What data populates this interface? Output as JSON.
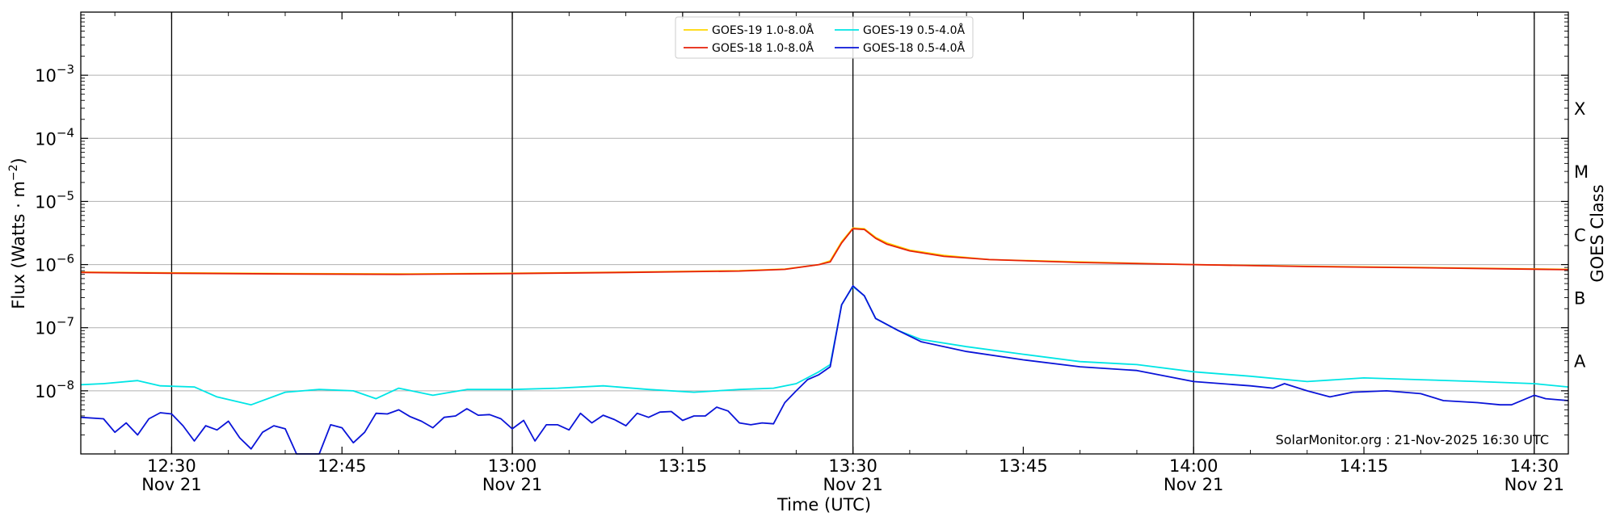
{
  "chart_data": {
    "type": "line",
    "xlabel": "Time (UTC)",
    "ylabel_main": "Flux (Watts · m",
    "ylabel_sup": "−2",
    "ylabel_close": ")",
    "ylabel_right": "GOES Class",
    "y_scale": "log",
    "ylim": [
      1e-09,
      0.01
    ],
    "xlim": [
      "12:22",
      "14:33"
    ],
    "y_ticks": [
      {
        "value": 0.001,
        "base": "10",
        "exp": "−3"
      },
      {
        "value": 0.0001,
        "base": "10",
        "exp": "−4"
      },
      {
        "value": 1e-05,
        "base": "10",
        "exp": "−5"
      },
      {
        "value": 1e-06,
        "base": "10",
        "exp": "−6"
      },
      {
        "value": 1e-07,
        "base": "10",
        "exp": "−7"
      },
      {
        "value": 1e-08,
        "base": "10",
        "exp": "−8"
      }
    ],
    "x_ticks": [
      {
        "time": "12:30",
        "label": "12:30",
        "date": "Nov 21",
        "vline": true
      },
      {
        "time": "12:45",
        "label": "12:45",
        "date": "",
        "vline": false
      },
      {
        "time": "13:00",
        "label": "13:00",
        "date": "Nov 21",
        "vline": true
      },
      {
        "time": "13:15",
        "label": "13:15",
        "date": "",
        "vline": false
      },
      {
        "time": "13:30",
        "label": "13:30",
        "date": "Nov 21",
        "vline": true
      },
      {
        "time": "13:45",
        "label": "13:45",
        "date": "",
        "vline": false
      },
      {
        "time": "14:00",
        "label": "14:00",
        "date": "Nov 21",
        "vline": true
      },
      {
        "time": "14:15",
        "label": "14:15",
        "date": "",
        "vline": false
      },
      {
        "time": "14:30",
        "label": "14:30",
        "date": "Nov 21",
        "vline": true
      }
    ],
    "goes_classes": [
      {
        "label": "X",
        "flux": 0.0003
      },
      {
        "label": "M",
        "flux": 3e-05
      },
      {
        "label": "C",
        "flux": 3e-06
      },
      {
        "label": "B",
        "flux": 3e-07
      },
      {
        "label": "A",
        "flux": 3e-08
      }
    ],
    "grid": "horizontal",
    "legend_position": "top-center",
    "credit": "SolarMonitor.org : 21-Nov-2025 16:30 UTC",
    "series": [
      {
        "name": "GOES-19 1.0-8.0Å",
        "color": "#ffd700",
        "points": [
          [
            "12:22",
            7.6e-07
          ],
          [
            "12:30",
            7.4e-07
          ],
          [
            "12:40",
            7.2e-07
          ],
          [
            "12:50",
            7.1e-07
          ],
          [
            "13:00",
            7.3e-07
          ],
          [
            "13:10",
            7.6e-07
          ],
          [
            "13:20",
            8e-07
          ],
          [
            "13:24",
            8.5e-07
          ],
          [
            "13:27",
            1e-06
          ],
          [
            "13:28",
            1.15e-06
          ],
          [
            "13:29",
            2.3e-06
          ],
          [
            "13:30",
            3.8e-06
          ],
          [
            "13:31",
            3.7e-06
          ],
          [
            "13:32",
            2.7e-06
          ],
          [
            "13:33",
            2.2e-06
          ],
          [
            "13:35",
            1.7e-06
          ],
          [
            "13:38",
            1.4e-06
          ],
          [
            "13:42",
            1.2e-06
          ],
          [
            "13:50",
            1.1e-06
          ],
          [
            "14:00",
            1e-06
          ],
          [
            "14:10",
            9.4e-07
          ],
          [
            "14:20",
            9e-07
          ],
          [
            "14:33",
            8.4e-07
          ]
        ]
      },
      {
        "name": "GOES-18 1.0-8.0Å",
        "color": "#e6200a",
        "points": [
          [
            "12:22",
            7.5e-07
          ],
          [
            "12:30",
            7.3e-07
          ],
          [
            "12:40",
            7.1e-07
          ],
          [
            "12:50",
            7e-07
          ],
          [
            "13:00",
            7.2e-07
          ],
          [
            "13:10",
            7.5e-07
          ],
          [
            "13:20",
            7.9e-07
          ],
          [
            "13:24",
            8.4e-07
          ],
          [
            "13:27",
            1e-06
          ],
          [
            "13:28",
            1.1e-06
          ],
          [
            "13:29",
            2.2e-06
          ],
          [
            "13:30",
            3.7e-06
          ],
          [
            "13:31",
            3.6e-06
          ],
          [
            "13:32",
            2.6e-06
          ],
          [
            "13:33",
            2.1e-06
          ],
          [
            "13:35",
            1.65e-06
          ],
          [
            "13:38",
            1.35e-06
          ],
          [
            "13:42",
            1.2e-06
          ],
          [
            "13:50",
            1.08e-06
          ],
          [
            "14:00",
            1e-06
          ],
          [
            "14:10",
            9.3e-07
          ],
          [
            "14:20",
            8.9e-07
          ],
          [
            "14:33",
            8.3e-07
          ]
        ]
      },
      {
        "name": "GOES-19 0.5-4.0Å",
        "color": "#00e5e5",
        "points": [
          [
            "12:22",
            1.25e-08
          ],
          [
            "12:24",
            1.3e-08
          ],
          [
            "12:27",
            1.45e-08
          ],
          [
            "12:29",
            1.2e-08
          ],
          [
            "12:32",
            1.15e-08
          ],
          [
            "12:34",
            8e-09
          ],
          [
            "12:37",
            6e-09
          ],
          [
            "12:40",
            9.5e-09
          ],
          [
            "12:43",
            1.05e-08
          ],
          [
            "12:46",
            1e-08
          ],
          [
            "12:48",
            7.5e-09
          ],
          [
            "12:50",
            1.1e-08
          ],
          [
            "12:53",
            8.5e-09
          ],
          [
            "12:56",
            1.05e-08
          ],
          [
            "13:00",
            1.05e-08
          ],
          [
            "13:04",
            1.1e-08
          ],
          [
            "13:08",
            1.2e-08
          ],
          [
            "13:12",
            1.05e-08
          ],
          [
            "13:16",
            9.5e-09
          ],
          [
            "13:20",
            1.05e-08
          ],
          [
            "13:23",
            1.1e-08
          ],
          [
            "13:25",
            1.3e-08
          ],
          [
            "13:27",
            2e-08
          ],
          [
            "13:28",
            2.6e-08
          ],
          [
            "13:29",
            2.3e-07
          ],
          [
            "13:30",
            4.5e-07
          ],
          [
            "13:31",
            3.2e-07
          ],
          [
            "13:32",
            1.4e-07
          ],
          [
            "13:34",
            9e-08
          ],
          [
            "13:36",
            6.5e-08
          ],
          [
            "13:40",
            5e-08
          ],
          [
            "13:45",
            3.8e-08
          ],
          [
            "13:50",
            2.9e-08
          ],
          [
            "13:55",
            2.6e-08
          ],
          [
            "14:00",
            2e-08
          ],
          [
            "14:05",
            1.7e-08
          ],
          [
            "14:10",
            1.4e-08
          ],
          [
            "14:15",
            1.6e-08
          ],
          [
            "14:20",
            1.5e-08
          ],
          [
            "14:25",
            1.4e-08
          ],
          [
            "14:30",
            1.3e-08
          ],
          [
            "14:33",
            1.15e-08
          ]
        ]
      },
      {
        "name": "GOES-18 0.5-4.0Å",
        "color": "#0a14d8",
        "points": [
          [
            "12:22",
            3.8e-09
          ],
          [
            "12:24",
            3.6e-09
          ],
          [
            "12:25",
            2.2e-09
          ],
          [
            "12:26",
            3.1e-09
          ],
          [
            "12:27",
            2e-09
          ],
          [
            "12:28",
            3.6e-09
          ],
          [
            "12:29",
            4.5e-09
          ],
          [
            "12:30",
            4.3e-09
          ],
          [
            "12:31",
            2.8e-09
          ],
          [
            "12:32",
            1.6e-09
          ],
          [
            "12:33",
            2.8e-09
          ],
          [
            "12:34",
            2.4e-09
          ],
          [
            "12:35",
            3.3e-09
          ],
          [
            "12:36",
            1.8e-09
          ],
          [
            "12:37",
            1.2e-09
          ],
          [
            "12:38",
            2.2e-09
          ],
          [
            "12:39",
            2.8e-09
          ],
          [
            "12:40",
            2.5e-09
          ],
          [
            "12:41",
            1e-09
          ],
          [
            "12:43",
            1e-09
          ],
          [
            "12:44",
            2.9e-09
          ],
          [
            "12:45",
            2.6e-09
          ],
          [
            "12:46",
            1.5e-09
          ],
          [
            "12:47",
            2.2e-09
          ],
          [
            "12:48",
            4.4e-09
          ],
          [
            "12:49",
            4.3e-09
          ],
          [
            "12:50",
            5e-09
          ],
          [
            "12:51",
            3.9e-09
          ],
          [
            "12:52",
            3.3e-09
          ],
          [
            "12:53",
            2.6e-09
          ],
          [
            "12:54",
            3.8e-09
          ],
          [
            "12:55",
            4e-09
          ],
          [
            "12:56",
            5.2e-09
          ],
          [
            "12:57",
            4.1e-09
          ],
          [
            "12:58",
            4.2e-09
          ],
          [
            "12:59",
            3.6e-09
          ],
          [
            "13:00",
            2.5e-09
          ],
          [
            "13:01",
            3.4e-09
          ],
          [
            "13:02",
            1.6e-09
          ],
          [
            "13:03",
            2.9e-09
          ],
          [
            "13:04",
            2.9e-09
          ],
          [
            "13:05",
            2.4e-09
          ],
          [
            "13:06",
            4.4e-09
          ],
          [
            "13:07",
            3.1e-09
          ],
          [
            "13:08",
            4.1e-09
          ],
          [
            "13:09",
            3.5e-09
          ],
          [
            "13:10",
            2.8e-09
          ],
          [
            "13:11",
            4.4e-09
          ],
          [
            "13:12",
            3.8e-09
          ],
          [
            "13:13",
            4.6e-09
          ],
          [
            "13:14",
            4.7e-09
          ],
          [
            "13:15",
            3.4e-09
          ],
          [
            "13:16",
            4e-09
          ],
          [
            "13:17",
            4e-09
          ],
          [
            "13:18",
            5.5e-09
          ],
          [
            "13:19",
            4.8e-09
          ],
          [
            "13:20",
            3.1e-09
          ],
          [
            "13:21",
            2.9e-09
          ],
          [
            "13:22",
            3.1e-09
          ],
          [
            "13:23",
            3e-09
          ],
          [
            "13:24",
            6.5e-09
          ],
          [
            "13:25",
            1e-08
          ],
          [
            "13:26",
            1.5e-08
          ],
          [
            "13:27",
            1.8e-08
          ],
          [
            "13:28",
            2.4e-08
          ],
          [
            "13:29",
            2.3e-07
          ],
          [
            "13:30",
            4.6e-07
          ],
          [
            "13:31",
            3.2e-07
          ],
          [
            "13:32",
            1.4e-07
          ],
          [
            "13:34",
            9e-08
          ],
          [
            "13:36",
            6e-08
          ],
          [
            "13:40",
            4.2e-08
          ],
          [
            "13:45",
            3.1e-08
          ],
          [
            "13:50",
            2.4e-08
          ],
          [
            "13:55",
            2.1e-08
          ],
          [
            "14:00",
            1.4e-08
          ],
          [
            "14:05",
            1.2e-08
          ],
          [
            "14:07",
            1.1e-08
          ],
          [
            "14:08",
            1.3e-08
          ],
          [
            "14:10",
            1e-08
          ],
          [
            "14:12",
            8e-09
          ],
          [
            "14:14",
            9.5e-09
          ],
          [
            "14:17",
            1e-08
          ],
          [
            "14:20",
            9e-09
          ],
          [
            "14:22",
            7e-09
          ],
          [
            "14:25",
            6.5e-09
          ],
          [
            "14:27",
            6e-09
          ],
          [
            "14:28",
            6e-09
          ],
          [
            "14:30",
            8.5e-09
          ],
          [
            "14:31",
            7.5e-09
          ],
          [
            "14:33",
            7e-09
          ]
        ]
      }
    ]
  }
}
